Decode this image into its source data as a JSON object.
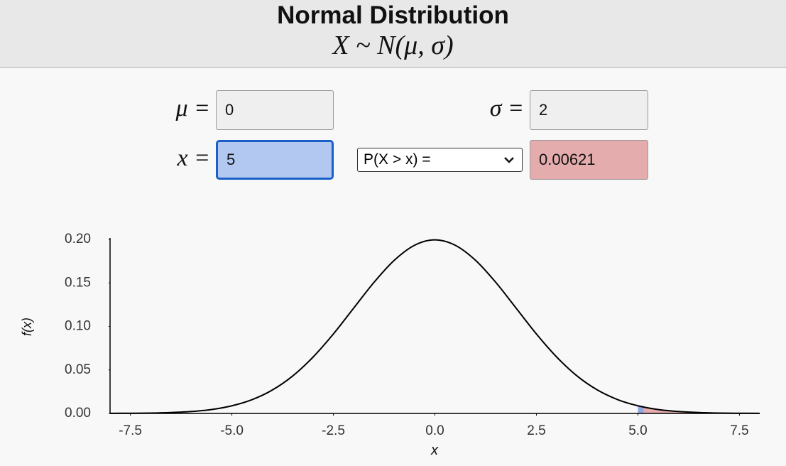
{
  "header": {
    "title": "Normal Distribution",
    "formula": "X ~ N(μ, σ)"
  },
  "inputs": {
    "mu": {
      "label": "μ =",
      "value": "0"
    },
    "sigma": {
      "label": "σ =",
      "value": "2"
    },
    "x": {
      "label": "x =",
      "value": "5"
    },
    "probability": {
      "selected": "P(X > x) =",
      "result": "0.00621"
    }
  },
  "chart_data": {
    "type": "line",
    "x": [
      -8,
      -7.5,
      -7,
      -6.5,
      -6,
      -5.5,
      -5,
      -4.5,
      -4,
      -3.5,
      -3,
      -2.5,
      -2,
      -1.5,
      -1,
      -0.5,
      0,
      0.5,
      1,
      1.5,
      2,
      2.5,
      3,
      3.5,
      4,
      4.5,
      5,
      5.5,
      6,
      6.5,
      7,
      7.5,
      8
    ],
    "values": [
      0.0001,
      0.0002,
      0.0004,
      0.001,
      0.0022,
      0.0045,
      0.0088,
      0.0159,
      0.027,
      0.0431,
      0.0648,
      0.0913,
      0.121,
      0.1506,
      0.176,
      0.1933,
      0.1995,
      0.1933,
      0.176,
      0.1506,
      0.121,
      0.0913,
      0.0648,
      0.0431,
      0.027,
      0.0159,
      0.0088,
      0.0045,
      0.0022,
      0.001,
      0.0004,
      0.0002,
      0.0001
    ],
    "color": "#000000",
    "shade_color": "#e4acac",
    "edge_color": "#8fa8e0",
    "xlim": [
      -8,
      8
    ],
    "ylim": [
      0,
      0.2
    ],
    "xticks": [
      -7.5,
      {
        "value": -5,
        "label": "-5.0"
      },
      -2.5,
      {
        "value": 0,
        "label": "0.0"
      },
      2.5,
      {
        "value": 5,
        "label": "5.0"
      },
      7.5
    ],
    "yticks": [
      {
        "value": 0,
        "label": "0.00"
      },
      {
        "value": 0.05,
        "label": "0.05"
      },
      {
        "value": 0.1,
        "label": "0.10"
      },
      {
        "value": 0.15,
        "label": "0.15"
      },
      {
        "value": 0.2,
        "label": "0.20"
      }
    ],
    "xlabel": "x",
    "ylabel": "f(x)"
  }
}
